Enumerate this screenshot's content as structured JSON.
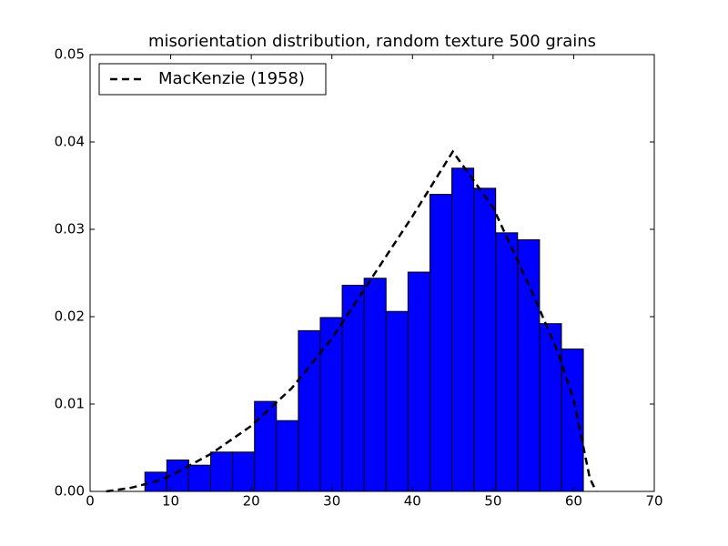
{
  "chart_data": {
    "type": "histogram",
    "title": "misorientation distribution, random texture 500 grains",
    "bins": [
      6.8,
      9.52,
      12.24,
      14.96,
      17.68,
      20.4,
      23.12,
      25.84,
      28.56,
      31.28,
      34.0,
      36.72,
      39.44,
      42.16,
      44.88,
      47.6,
      50.32,
      53.04,
      55.76,
      58.48,
      61.2
    ],
    "values": [
      0.0022,
      0.0036,
      0.003,
      0.0045,
      0.0045,
      0.0103,
      0.0081,
      0.0184,
      0.0199,
      0.0236,
      0.0244,
      0.0206,
      0.0251,
      0.034,
      0.037,
      0.0347,
      0.0296,
      0.0288,
      0.0192,
      0.0163
    ],
    "color": "#0000ff",
    "series": [
      {
        "name": "MacKenzie (1958)",
        "color": "#000000",
        "x": [
          2,
          5,
          8,
          10,
          15,
          20,
          25,
          30,
          35,
          40,
          45,
          50,
          55,
          58,
          60,
          62,
          62.8
        ],
        "values": [
          0,
          0.0004,
          0.0011,
          0.0018,
          0.0043,
          0.0075,
          0.0118,
          0.0175,
          0.0245,
          0.0315,
          0.0389,
          0.0325,
          0.0225,
          0.016,
          0.0105,
          0.0015,
          0
        ]
      }
    ],
    "xlim": [
      0,
      70
    ],
    "xticks": [
      0,
      10,
      20,
      30,
      40,
      50,
      60,
      70
    ],
    "ylim": [
      0,
      0.05
    ],
    "yticks": [
      {
        "value": 0,
        "label": "0.00"
      },
      0.01,
      0.02,
      0.03,
      0.04,
      0.05
    ],
    "legend": "upper left"
  }
}
